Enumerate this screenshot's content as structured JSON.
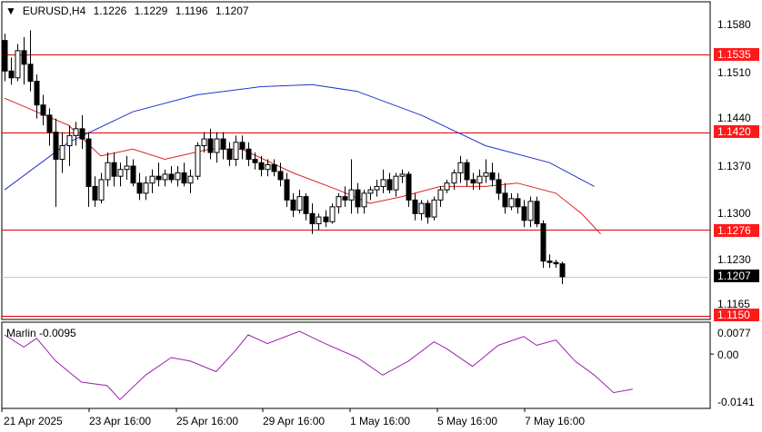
{
  "title": {
    "symbol": "EURUSD,H4",
    "open": "1.1226",
    "high": "1.1229",
    "low": "1.1196",
    "close": "1.1207"
  },
  "colors": {
    "up_candle": "#ffffff",
    "down_candle": "#000000",
    "level_line": "#e00000",
    "level_label_bg": "#ff1a1a",
    "ma_slow": "#2233cc",
    "ma_fast": "#dd2222",
    "marlin": "#9922aa",
    "current_label_bg": "#000000"
  },
  "price_axis": [
    "1.1580",
    "1.1510",
    "1.1440",
    "1.1370",
    "1.1300",
    "1.1230",
    "1.1165"
  ],
  "levels": [
    {
      "label": "1.1535",
      "value": 1.1535
    },
    {
      "label": "1.1420",
      "value": 1.142
    },
    {
      "label": "1.1276",
      "value": 1.1276
    },
    {
      "label": "1.1150",
      "value": 1.115
    }
  ],
  "current_price": {
    "label": "1.1207",
    "value": 1.1207
  },
  "indicator": {
    "label": "Marlin -0.0095",
    "axis": [
      "0.0077",
      "0.00",
      "-0.0141"
    ]
  },
  "time_axis": [
    "21 Apr 2025",
    "23 Apr 16:00",
    "25 Apr 16:00",
    "29 Apr 16:00",
    "1 May 16:00",
    "5 May 16:00",
    "7 May 16:00"
  ],
  "chart_data": {
    "type": "candlestick",
    "symbol": "EURUSD",
    "timeframe": "H4",
    "ylim": [
      1.1144,
      1.1612
    ],
    "candles": [
      [
        1.1555,
        1.1565,
        1.1495,
        1.151
      ],
      [
        1.151,
        1.153,
        1.149,
        1.15
      ],
      [
        1.15,
        1.155,
        1.1495,
        1.154
      ],
      [
        1.154,
        1.156,
        1.149,
        1.152
      ],
      [
        1.152,
        1.157,
        1.148,
        1.1495
      ],
      [
        1.1495,
        1.1505,
        1.144,
        1.146
      ],
      [
        1.146,
        1.1475,
        1.143,
        1.1445
      ],
      [
        1.1445,
        1.1455,
        1.14,
        1.142
      ],
      [
        1.142,
        1.144,
        1.131,
        1.138
      ],
      [
        1.138,
        1.142,
        1.136,
        1.14
      ],
      [
        1.14,
        1.143,
        1.137,
        1.1415
      ],
      [
        1.1415,
        1.1435,
        1.14,
        1.1425
      ],
      [
        1.1425,
        1.1445,
        1.1395,
        1.141
      ],
      [
        1.141,
        1.142,
        1.131,
        1.134
      ],
      [
        1.134,
        1.1355,
        1.131,
        1.132
      ],
      [
        1.132,
        1.136,
        1.1315,
        1.135
      ],
      [
        1.135,
        1.139,
        1.134,
        1.1375
      ],
      [
        1.1375,
        1.139,
        1.134,
        1.1355
      ],
      [
        1.1355,
        1.1375,
        1.134,
        1.1365
      ],
      [
        1.1365,
        1.1385,
        1.135,
        1.137
      ],
      [
        1.137,
        1.138,
        1.134,
        1.1345
      ],
      [
        1.1345,
        1.136,
        1.132,
        1.133
      ],
      [
        1.133,
        1.1355,
        1.132,
        1.1345
      ],
      [
        1.1345,
        1.1365,
        1.133,
        1.1355
      ],
      [
        1.1355,
        1.1375,
        1.134,
        1.135
      ],
      [
        1.135,
        1.1365,
        1.134,
        1.1358
      ],
      [
        1.1358,
        1.137,
        1.1345,
        1.135
      ],
      [
        1.135,
        1.137,
        1.134,
        1.136
      ],
      [
        1.136,
        1.1375,
        1.134,
        1.1345
      ],
      [
        1.1345,
        1.1365,
        1.133,
        1.1355
      ],
      [
        1.1355,
        1.1405,
        1.135,
        1.14
      ],
      [
        1.14,
        1.142,
        1.139,
        1.141
      ],
      [
        1.141,
        1.1425,
        1.138,
        1.139
      ],
      [
        1.139,
        1.142,
        1.1375,
        1.141
      ],
      [
        1.141,
        1.142,
        1.138,
        1.1395
      ],
      [
        1.1395,
        1.1405,
        1.137,
        1.138
      ],
      [
        1.138,
        1.1415,
        1.137,
        1.1405
      ],
      [
        1.1405,
        1.1415,
        1.138,
        1.1395
      ],
      [
        1.1395,
        1.1405,
        1.137,
        1.138
      ],
      [
        1.138,
        1.139,
        1.1365,
        1.1375
      ],
      [
        1.1375,
        1.1385,
        1.1355,
        1.1365
      ],
      [
        1.1365,
        1.138,
        1.1355,
        1.1372
      ],
      [
        1.1372,
        1.138,
        1.1355,
        1.1362
      ],
      [
        1.1362,
        1.1375,
        1.134,
        1.135
      ],
      [
        1.135,
        1.136,
        1.131,
        1.132
      ],
      [
        1.132,
        1.133,
        1.1295,
        1.1305
      ],
      [
        1.1305,
        1.1335,
        1.13,
        1.1325
      ],
      [
        1.1325,
        1.133,
        1.129,
        1.13
      ],
      [
        1.13,
        1.1315,
        1.127,
        1.1285
      ],
      [
        1.1285,
        1.13,
        1.1275,
        1.1295
      ],
      [
        1.1295,
        1.1305,
        1.128,
        1.1288
      ],
      [
        1.1288,
        1.1315,
        1.1285,
        1.131
      ],
      [
        1.131,
        1.133,
        1.13,
        1.1325
      ],
      [
        1.1325,
        1.134,
        1.131,
        1.132
      ],
      [
        1.132,
        1.138,
        1.13,
        1.1335
      ],
      [
        1.1335,
        1.1345,
        1.13,
        1.131
      ],
      [
        1.131,
        1.1335,
        1.13,
        1.133
      ],
      [
        1.133,
        1.134,
        1.132,
        1.1335
      ],
      [
        1.1335,
        1.135,
        1.1325,
        1.134
      ],
      [
        1.134,
        1.1365,
        1.133,
        1.135
      ],
      [
        1.135,
        1.136,
        1.133,
        1.1335
      ],
      [
        1.1335,
        1.136,
        1.1325,
        1.1355
      ],
      [
        1.1355,
        1.1365,
        1.1345,
        1.1358
      ],
      [
        1.1358,
        1.1362,
        1.131,
        1.132
      ],
      [
        1.132,
        1.133,
        1.129,
        1.13
      ],
      [
        1.13,
        1.132,
        1.129,
        1.1315
      ],
      [
        1.1315,
        1.132,
        1.1285,
        1.1295
      ],
      [
        1.1295,
        1.1325,
        1.129,
        1.132
      ],
      [
        1.132,
        1.134,
        1.131,
        1.1335
      ],
      [
        1.1335,
        1.135,
        1.133,
        1.1345
      ],
      [
        1.1345,
        1.1365,
        1.1335,
        1.136
      ],
      [
        1.136,
        1.1385,
        1.1345,
        1.1375
      ],
      [
        1.1375,
        1.138,
        1.134,
        1.135
      ],
      [
        1.135,
        1.136,
        1.1335,
        1.1345
      ],
      [
        1.1345,
        1.1365,
        1.1335,
        1.1355
      ],
      [
        1.1355,
        1.138,
        1.1345,
        1.136
      ],
      [
        1.136,
        1.1375,
        1.134,
        1.135
      ],
      [
        1.135,
        1.136,
        1.132,
        1.133
      ],
      [
        1.133,
        1.1345,
        1.13,
        1.131
      ],
      [
        1.131,
        1.133,
        1.1305,
        1.1322
      ],
      [
        1.1322,
        1.133,
        1.13,
        1.131
      ],
      [
        1.131,
        1.132,
        1.128,
        1.129
      ],
      [
        1.129,
        1.1325,
        1.128,
        1.1318
      ],
      [
        1.1318,
        1.1325,
        1.128,
        1.1285
      ],
      [
        1.1285,
        1.129,
        1.122,
        1.123
      ],
      [
        1.123,
        1.124,
        1.122,
        1.1228
      ],
      [
        1.1228,
        1.1232,
        1.122,
        1.1226
      ],
      [
        1.1226,
        1.1229,
        1.1196,
        1.1207
      ]
    ],
    "ma_slow": [
      [
        0,
        1.1335
      ],
      [
        10,
        1.1405
      ],
      [
        20,
        1.145
      ],
      [
        30,
        1.1475
      ],
      [
        40,
        1.1487
      ],
      [
        48,
        1.149
      ],
      [
        55,
        1.148
      ],
      [
        65,
        1.1445
      ],
      [
        75,
        1.14
      ],
      [
        85,
        1.1375
      ],
      [
        92,
        1.134
      ]
    ],
    "ma_fast": [
      [
        0,
        1.147
      ],
      [
        5,
        1.145
      ],
      [
        10,
        1.143
      ],
      [
        15,
        1.1385
      ],
      [
        20,
        1.1395
      ],
      [
        25,
        1.138
      ],
      [
        32,
        1.1395
      ],
      [
        37,
        1.1395
      ],
      [
        45,
        1.136
      ],
      [
        52,
        1.1335
      ],
      [
        57,
        1.1315
      ],
      [
        62,
        1.1325
      ],
      [
        68,
        1.134
      ],
      [
        75,
        1.134
      ],
      [
        80,
        1.1345
      ],
      [
        86,
        1.133
      ],
      [
        90,
        1.13
      ],
      [
        93,
        1.127
      ]
    ],
    "marlin_ylim": [
      -0.0155,
      0.0091
    ],
    "marlin": [
      [
        0,
        0.0055
      ],
      [
        3,
        0.002
      ],
      [
        5,
        0.0045
      ],
      [
        8,
        -0.002
      ],
      [
        12,
        -0.008
      ],
      [
        16,
        -0.009
      ],
      [
        18,
        -0.013
      ],
      [
        22,
        -0.006
      ],
      [
        26,
        -0.001
      ],
      [
        29,
        -0.002
      ],
      [
        33,
        -0.005
      ],
      [
        36,
        0.001
      ],
      [
        38,
        0.0055
      ],
      [
        41,
        0.003
      ],
      [
        46,
        0.0065
      ],
      [
        50,
        0.003
      ],
      [
        55,
        -0.001
      ],
      [
        59,
        -0.006
      ],
      [
        63,
        -0.002
      ],
      [
        67,
        0.0035
      ],
      [
        69,
        0.0015
      ],
      [
        73,
        -0.0035
      ],
      [
        77,
        0.0025
      ],
      [
        81,
        0.005
      ],
      [
        83,
        0.0025
      ],
      [
        86,
        0.004
      ],
      [
        89,
        -0.002
      ],
      [
        92,
        -0.006
      ],
      [
        95,
        -0.011
      ],
      [
        98,
        -0.01
      ]
    ]
  }
}
